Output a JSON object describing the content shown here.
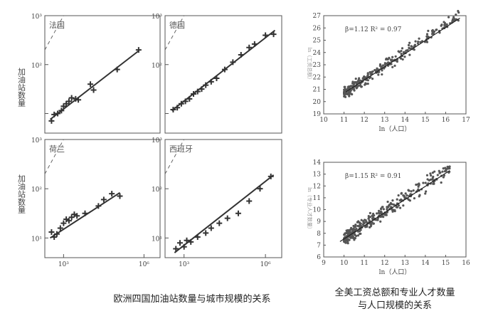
{
  "left_figure": {
    "y_label": "加油站数量",
    "caption": "欧洲四国加油站数量与城市规模的关系"
  },
  "right_figure": {
    "caption_line1": "全美工资总额和专业人才数量",
    "caption_line2": "与人口规模的关系"
  },
  "chart_data": [
    {
      "type": "scatter",
      "title": "法国",
      "x_scale": "log",
      "y_scale": "log",
      "x_ticks": [
        "10³",
        "10⁶"
      ],
      "y_ticks": [
        "10¹",
        "10²",
        "10³"
      ],
      "xlim_log10": [
        2.3,
        6.6
      ],
      "ylim_log10": [
        0.6,
        3.0
      ],
      "identity_line": true,
      "points": [
        [
          2.55,
          0.85
        ],
        [
          2.65,
          0.98
        ],
        [
          2.78,
          1.0
        ],
        [
          2.92,
          1.06
        ],
        [
          3.0,
          1.15
        ],
        [
          3.1,
          1.2
        ],
        [
          3.2,
          1.25
        ],
        [
          3.3,
          1.32
        ],
        [
          3.45,
          1.3
        ],
        [
          3.55,
          1.28
        ],
        [
          4.0,
          1.6
        ],
        [
          4.12,
          1.48
        ],
        [
          5.0,
          1.9
        ],
        [
          5.8,
          2.3
        ]
      ],
      "fit": [
        [
          2.5,
          0.88
        ],
        [
          5.8,
          2.28
        ]
      ]
    },
    {
      "type": "scatter",
      "title": "德国",
      "x_scale": "log",
      "y_scale": "log",
      "x_ticks": [
        "10³",
        "10⁶"
      ],
      "y_ticks": [
        "10¹",
        "10²",
        "10³"
      ],
      "xlim_log10": [
        2.3,
        6.6
      ],
      "ylim_log10": [
        0.6,
        3.0
      ],
      "identity_line": true,
      "points": [
        [
          2.6,
          1.08
        ],
        [
          2.75,
          1.12
        ],
        [
          2.9,
          1.2
        ],
        [
          3.05,
          1.25
        ],
        [
          3.2,
          1.3
        ],
        [
          3.35,
          1.4
        ],
        [
          3.5,
          1.45
        ],
        [
          3.65,
          1.5
        ],
        [
          3.8,
          1.58
        ],
        [
          4.0,
          1.65
        ],
        [
          4.2,
          1.72
        ],
        [
          4.5,
          1.9
        ],
        [
          4.8,
          2.05
        ],
        [
          5.1,
          2.2
        ],
        [
          5.4,
          2.35
        ],
        [
          5.6,
          2.42
        ],
        [
          6.0,
          2.6
        ],
        [
          6.3,
          2.62
        ]
      ],
      "fit": [
        [
          2.55,
          1.06
        ],
        [
          6.35,
          2.7
        ]
      ]
    },
    {
      "type": "scatter",
      "title": "荷兰",
      "x_scale": "log",
      "y_scale": "log",
      "x_ticks": [
        "10³",
        "10⁶"
      ],
      "y_ticks": [
        "10¹",
        "10²",
        "10³"
      ],
      "xlim_log10": [
        2.3,
        6.6
      ],
      "ylim_log10": [
        0.6,
        3.0
      ],
      "identity_line": true,
      "points": [
        [
          2.55,
          1.12
        ],
        [
          2.65,
          1.02
        ],
        [
          2.75,
          1.08
        ],
        [
          2.88,
          1.2
        ],
        [
          3.0,
          1.3
        ],
        [
          3.1,
          1.38
        ],
        [
          3.2,
          1.35
        ],
        [
          3.3,
          1.42
        ],
        [
          3.4,
          1.48
        ],
        [
          3.5,
          1.45
        ],
        [
          3.8,
          1.5
        ],
        [
          4.3,
          1.65
        ],
        [
          4.5,
          1.78
        ],
        [
          4.8,
          1.9
        ],
        [
          5.1,
          1.85
        ]
      ],
      "fit": [
        [
          2.5,
          1.0
        ],
        [
          5.1,
          1.92
        ]
      ]
    },
    {
      "type": "scatter",
      "title": "西班牙",
      "x_scale": "log",
      "y_scale": "log",
      "x_ticks": [
        "10³",
        "10⁶"
      ],
      "y_ticks": [
        "10¹",
        "10²",
        "10³"
      ],
      "xlim_log10": [
        2.3,
        6.6
      ],
      "ylim_log10": [
        0.6,
        3.0
      ],
      "identity_line": true,
      "points": [
        [
          2.7,
          0.78
        ],
        [
          2.85,
          0.9
        ],
        [
          3.0,
          0.82
        ],
        [
          3.1,
          0.95
        ],
        [
          3.25,
          0.92
        ],
        [
          3.5,
          1.02
        ],
        [
          3.8,
          1.1
        ],
        [
          4.0,
          1.2
        ],
        [
          4.3,
          1.3
        ],
        [
          4.6,
          1.4
        ],
        [
          5.0,
          1.5
        ],
        [
          5.4,
          1.75
        ],
        [
          5.8,
          2.0
        ],
        [
          6.2,
          2.25
        ]
      ],
      "fit": [
        [
          2.65,
          0.7
        ],
        [
          6.3,
          2.28
        ]
      ]
    },
    {
      "type": "scatter",
      "annotation": "β=1.12   R² = 0.97",
      "xlabel": "ln（人口）",
      "ylabel": "ln（工资总额）",
      "xlim": [
        10,
        17
      ],
      "ylim": [
        19,
        27
      ],
      "x_ticks": [
        10,
        11,
        12,
        13,
        14,
        15,
        16,
        17
      ],
      "y_ticks": [
        19,
        20,
        21,
        22,
        23,
        24,
        25,
        26,
        27
      ],
      "fit": [
        [
          11.1,
          20.8
        ],
        [
          16.7,
          26.8
        ]
      ],
      "cloud": {
        "x_range": [
          11.0,
          16.7
        ],
        "slope": 1.12,
        "intercept": 8.37,
        "spread": 0.35,
        "count": 290
      }
    },
    {
      "type": "scatter",
      "annotation": "β=1.15   R² = 0.91",
      "xlabel": "ln（人口）",
      "ylabel": "ln（专业人才数量）",
      "xlim": [
        9,
        16
      ],
      "ylim": [
        6,
        14
      ],
      "x_ticks": [
        9,
        10,
        11,
        12,
        13,
        14,
        15,
        16
      ],
      "y_ticks": [
        6,
        7,
        8,
        9,
        10,
        11,
        12,
        13,
        14
      ],
      "fit": [
        [
          9.8,
          7.3
        ],
        [
          15.2,
          13.3
        ]
      ],
      "cloud": {
        "x_range": [
          10.0,
          15.2
        ],
        "slope": 1.15,
        "intercept": -3.95,
        "spread": 0.45,
        "count": 320
      }
    }
  ]
}
